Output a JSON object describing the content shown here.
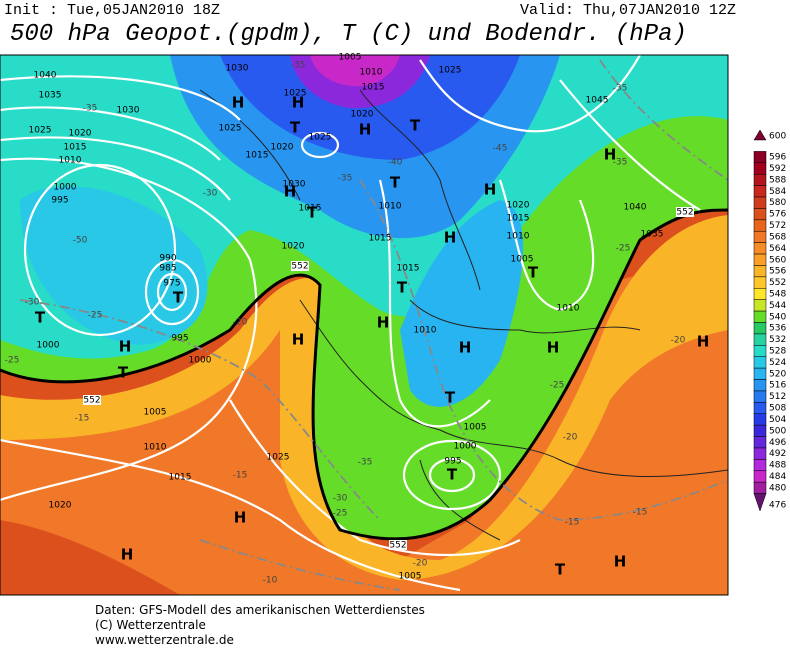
{
  "header": {
    "init": "Init : Tue,05JAN2010 18Z",
    "valid": "Valid: Thu,07JAN2010 12Z",
    "title": "500 hPa Geopot.(gpdm), T (C) und Bodendr. (hPa)"
  },
  "map": {
    "pressure_labels": [
      "1040",
      "1035",
      "1030",
      "1025",
      "1020",
      "1015",
      "1010",
      "1000",
      "995",
      "990",
      "985",
      "975",
      "995",
      "1000",
      "1000",
      "1005",
      "1010",
      "1015",
      "1020",
      "1025",
      "1020",
      "1015",
      "1030",
      "1025",
      "1025",
      "1020",
      "1015",
      "1010",
      "1015",
      "1015",
      "1010",
      "1005",
      "1000",
      "995",
      "1010",
      "1015",
      "1005",
      "1020",
      "1025",
      "1020",
      "1015",
      "1010",
      "1005",
      "1010",
      "1040",
      "1035",
      "1045",
      "1025",
      "1005",
      "1030"
    ],
    "temperature_labels": [
      "-35",
      "-35",
      "-30",
      "-30",
      "-25",
      "-25",
      "-20",
      "-15",
      "-15",
      "-10",
      "-35",
      "-30",
      "-25",
      "-20",
      "-15",
      "-15",
      "-20",
      "-25",
      "-20",
      "-25",
      "-40",
      "-45",
      "-35",
      "-35",
      "-35",
      "-50"
    ],
    "contour_labels": [
      "552",
      "552",
      "552",
      "552"
    ],
    "high_labels": [
      "H",
      "H",
      "H",
      "H",
      "H",
      "H",
      "H",
      "H",
      "H",
      "H",
      "H",
      "H",
      "H",
      "H",
      "H",
      "H"
    ],
    "low_labels": [
      "T",
      "T",
      "T",
      "T",
      "T",
      "T",
      "T",
      "T",
      "T",
      "T",
      "T",
      "T"
    ]
  },
  "color_scale": {
    "values": [
      600,
      596,
      592,
      588,
      584,
      580,
      576,
      572,
      568,
      564,
      560,
      556,
      552,
      548,
      544,
      540,
      536,
      532,
      528,
      524,
      520,
      516,
      512,
      508,
      504,
      500,
      496,
      492,
      488,
      484,
      480,
      476
    ],
    "colors": [
      "#7a0030",
      "#8b0025",
      "#a0001e",
      "#b4141e",
      "#c8281e",
      "#d23c1e",
      "#dc501e",
      "#e6641e",
      "#f07828",
      "#f58c28",
      "#faa028",
      "#fab428",
      "#ffc828",
      "#ffe628",
      "#c8e628",
      "#64dc28",
      "#28c864",
      "#28d2a0",
      "#28dcc8",
      "#28c8e6",
      "#28b4f0",
      "#2896f0",
      "#2878f0",
      "#285af0",
      "#283ce6",
      "#3c28dc",
      "#6428dc",
      "#8c28dc",
      "#b428dc",
      "#c828c8",
      "#a01ea0",
      "#64146e"
    ]
  },
  "footer": {
    "source": "Daten: GFS-Modell des amerikanischen Wetterdienstes",
    "copyright": "(C) Wetterzentrale",
    "url": "www.wetterzentrale.de"
  }
}
